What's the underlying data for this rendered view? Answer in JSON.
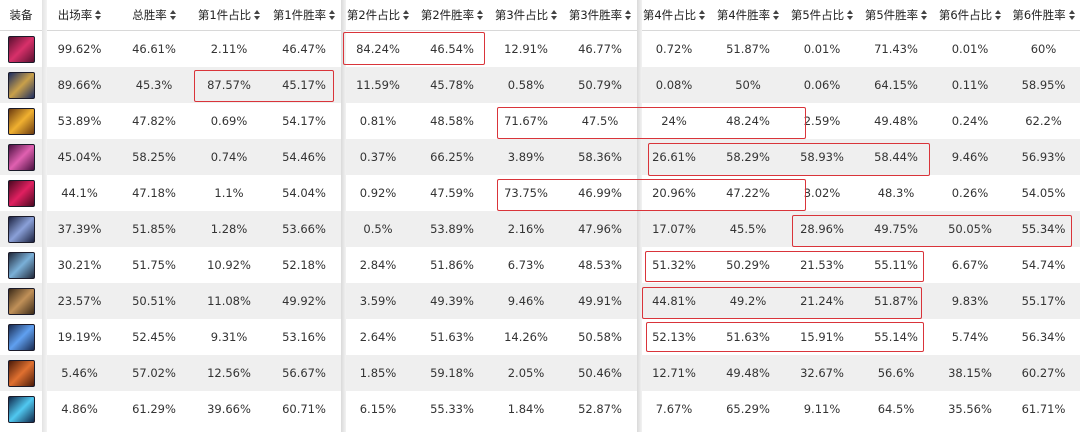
{
  "headers": [
    "装备",
    "出场率",
    "总胜率",
    "第1件占比",
    "第1件胜率",
    "第2件占比",
    "第2件胜率",
    "第3件占比",
    "第3件胜率",
    "第4件占比",
    "第4件胜率",
    "第5件占比",
    "第5件胜率",
    "第6件占比",
    "第6件胜率"
  ],
  "sortable": [
    false,
    true,
    true,
    true,
    true,
    true,
    true,
    true,
    true,
    true,
    true,
    true,
    true,
    true,
    true
  ],
  "colors": {
    "highlight_border": "#d9343a",
    "row_alt": "#efefef"
  },
  "rows": [
    {
      "icon": "magenta-sword-item-icon",
      "icon_colors": [
        "#5a1030",
        "#d8306a"
      ],
      "values": [
        "99.62%",
        "46.61%",
        "2.11%",
        "46.47%",
        "84.24%",
        "46.54%",
        "12.91%",
        "46.77%",
        "0.72%",
        "51.87%",
        "0.01%",
        "71.43%",
        "0.01%",
        "60%"
      ]
    },
    {
      "icon": "blue-gold-staff-item-icon",
      "icon_colors": [
        "#1d2d60",
        "#c9a04a"
      ],
      "values": [
        "89.66%",
        "45.3%",
        "87.57%",
        "45.17%",
        "11.59%",
        "45.78%",
        "0.58%",
        "50.79%",
        "0.08%",
        "50%",
        "0.06%",
        "64.15%",
        "0.11%",
        "58.95%"
      ]
    },
    {
      "icon": "golden-blade-item-icon",
      "icon_colors": [
        "#6a3a10",
        "#f0b030"
      ],
      "values": [
        "53.89%",
        "47.82%",
        "0.69%",
        "54.17%",
        "0.81%",
        "48.58%",
        "71.67%",
        "47.5%",
        "24%",
        "48.24%",
        "2.59%",
        "49.48%",
        "0.24%",
        "62.2%"
      ]
    },
    {
      "icon": "pink-spear-item-icon",
      "icon_colors": [
        "#4a1040",
        "#e060b0"
      ],
      "values": [
        "45.04%",
        "58.25%",
        "0.74%",
        "54.46%",
        "0.37%",
        "66.25%",
        "3.89%",
        "58.36%",
        "26.61%",
        "58.29%",
        "58.93%",
        "58.44%",
        "9.46%",
        "56.93%"
      ]
    },
    {
      "icon": "crimson-bow-item-icon",
      "icon_colors": [
        "#4a0820",
        "#e02060"
      ],
      "values": [
        "44.1%",
        "47.18%",
        "1.1%",
        "54.04%",
        "0.92%",
        "47.59%",
        "73.75%",
        "46.99%",
        "20.96%",
        "47.22%",
        "3.02%",
        "48.3%",
        "0.26%",
        "54.05%"
      ]
    },
    {
      "icon": "silver-armor-item-icon",
      "icon_colors": [
        "#1c2240",
        "#8aa0d8"
      ],
      "values": [
        "37.39%",
        "51.85%",
        "1.28%",
        "53.66%",
        "0.5%",
        "53.89%",
        "2.16%",
        "47.96%",
        "17.07%",
        "45.5%",
        "28.96%",
        "49.75%",
        "50.05%",
        "55.34%"
      ]
    },
    {
      "icon": "steel-lance-item-icon",
      "icon_colors": [
        "#20283a",
        "#7ab0d8"
      ],
      "values": [
        "30.21%",
        "51.75%",
        "10.92%",
        "52.18%",
        "2.84%",
        "51.86%",
        "6.73%",
        "48.53%",
        "51.32%",
        "50.29%",
        "21.53%",
        "55.11%",
        "6.67%",
        "54.74%"
      ]
    },
    {
      "icon": "bronze-shield-item-icon",
      "icon_colors": [
        "#3a2a18",
        "#c09058"
      ],
      "values": [
        "23.57%",
        "50.51%",
        "11.08%",
        "49.92%",
        "3.59%",
        "49.39%",
        "9.46%",
        "49.91%",
        "44.81%",
        "49.2%",
        "21.24%",
        "51.87%",
        "9.83%",
        "55.17%"
      ]
    },
    {
      "icon": "azure-dagger-item-icon",
      "icon_colors": [
        "#182a50",
        "#60a0f0"
      ],
      "values": [
        "19.19%",
        "52.45%",
        "9.31%",
        "53.16%",
        "2.64%",
        "51.63%",
        "14.26%",
        "50.58%",
        "52.13%",
        "51.63%",
        "15.91%",
        "55.14%",
        "5.74%",
        "56.34%"
      ]
    },
    {
      "icon": "flame-axe-item-icon",
      "icon_colors": [
        "#4a1a08",
        "#e07030"
      ],
      "values": [
        "5.46%",
        "57.02%",
        "12.56%",
        "56.67%",
        "1.85%",
        "59.18%",
        "2.05%",
        "50.46%",
        "12.71%",
        "49.48%",
        "32.67%",
        "56.6%",
        "38.15%",
        "60.27%"
      ]
    },
    {
      "icon": "ice-sword-item-icon",
      "icon_colors": [
        "#10284a",
        "#50c8f0"
      ],
      "values": [
        "4.86%",
        "61.29%",
        "39.66%",
        "60.71%",
        "6.15%",
        "55.33%",
        "1.84%",
        "52.87%",
        "7.67%",
        "65.29%",
        "9.11%",
        "64.5%",
        "35.56%",
        "61.71%"
      ]
    }
  ]
}
